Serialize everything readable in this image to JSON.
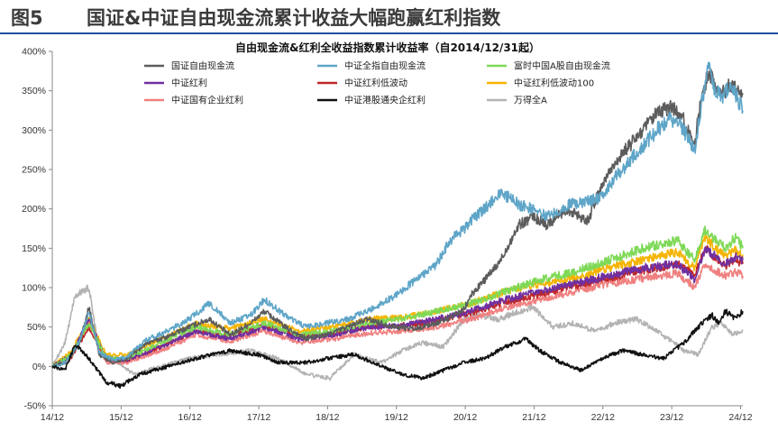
{
  "figure": {
    "number": "图5",
    "title": "国证&中证自由现金流累计收益大幅跑赢红利指数"
  },
  "chart_data": {
    "type": "line",
    "title": "自由现金流&红利全收益指数累计收益率（自2014/12/31起）",
    "xlabel": "",
    "ylabel": "",
    "y_ticks": [
      "-50%",
      "0%",
      "50%",
      "100%",
      "150%",
      "200%",
      "250%",
      "300%",
      "350%",
      "400%"
    ],
    "ylim": [
      -50,
      400
    ],
    "x_ticks": [
      "14/12",
      "15/12",
      "16/12",
      "17/12",
      "18/12",
      "19/12",
      "20/12",
      "21/12",
      "22/12",
      "23/12",
      "24/12"
    ],
    "x_tick_years": [
      2014.917,
      2015.917,
      2016.917,
      2017.917,
      2018.917,
      2019.917,
      2020.917,
      2021.917,
      2022.917,
      2023.917,
      2024.917
    ],
    "xlim": [
      2014.917,
      2024.95
    ],
    "grid": false,
    "legend_position": "top, inside, three columns",
    "x_unit": "year (decimal)",
    "y_unit": "%",
    "series": [
      {
        "name": "国证自由现金流",
        "color": "#5c5c5c",
        "x": [
          2014.92,
          2015.1,
          2015.3,
          2015.45,
          2015.6,
          2015.8,
          2016.0,
          2016.3,
          2016.6,
          2016.9,
          2017.2,
          2017.5,
          2017.8,
          2018.0,
          2018.3,
          2018.6,
          2018.9,
          2019.2,
          2019.5,
          2019.9,
          2020.2,
          2020.5,
          2020.7,
          2020.9,
          2021.0,
          2021.2,
          2021.4,
          2021.55,
          2021.7,
          2021.9,
          2022.1,
          2022.4,
          2022.7,
          2022.9,
          2023.1,
          2023.3,
          2023.5,
          2023.7,
          2023.9,
          2024.05,
          2024.15,
          2024.25,
          2024.35,
          2024.45,
          2024.55,
          2024.65,
          2024.75,
          2024.85,
          2024.95
        ],
        "y": [
          0,
          5,
          25,
          75,
          15,
          5,
          10,
          30,
          38,
          50,
          60,
          40,
          55,
          70,
          50,
          35,
          40,
          50,
          60,
          50,
          48,
          55,
          62,
          72,
          90,
          110,
          130,
          155,
          180,
          190,
          180,
          200,
          185,
          230,
          260,
          280,
          300,
          320,
          330,
          320,
          300,
          285,
          340,
          375,
          355,
          345,
          360,
          355,
          345
        ]
      },
      {
        "name": "中证全指自由现金流",
        "color": "#5ea5c8",
        "x": [
          2014.92,
          2015.1,
          2015.3,
          2015.45,
          2015.6,
          2015.8,
          2016.0,
          2016.3,
          2016.6,
          2016.9,
          2017.2,
          2017.5,
          2017.8,
          2018.0,
          2018.3,
          2018.6,
          2018.9,
          2019.2,
          2019.5,
          2019.9,
          2020.2,
          2020.5,
          2020.7,
          2020.9,
          2021.0,
          2021.2,
          2021.4,
          2021.55,
          2021.7,
          2021.9,
          2022.1,
          2022.4,
          2022.7,
          2022.9,
          2023.1,
          2023.3,
          2023.5,
          2023.7,
          2023.9,
          2024.05,
          2024.15,
          2024.25,
          2024.35,
          2024.45,
          2024.55,
          2024.65,
          2024.75,
          2024.85,
          2024.95
        ],
        "y": [
          0,
          5,
          28,
          70,
          18,
          8,
          12,
          35,
          45,
          60,
          80,
          55,
          65,
          85,
          65,
          50,
          55,
          60,
          70,
          90,
          110,
          130,
          160,
          175,
          185,
          200,
          220,
          215,
          205,
          200,
          190,
          205,
          210,
          215,
          240,
          260,
          280,
          300,
          315,
          305,
          290,
          275,
          335,
          380,
          350,
          340,
          355,
          345,
          325
        ]
      },
      {
        "name": "富时中国A股自由现金流",
        "color": "#7ed957",
        "x": [
          2014.92,
          2015.2,
          2015.45,
          2015.7,
          2016.0,
          2016.5,
          2017.0,
          2017.5,
          2018.0,
          2018.5,
          2019.0,
          2019.5,
          2020.0,
          2020.5,
          2021.0,
          2021.5,
          2022.0,
          2022.5,
          2023.0,
          2023.5,
          2024.0,
          2024.25,
          2024.4,
          2024.55,
          2024.7,
          2024.85,
          2024.95
        ],
        "y": [
          0,
          15,
          55,
          10,
          10,
          30,
          50,
          40,
          55,
          40,
          45,
          55,
          60,
          70,
          80,
          95,
          110,
          120,
          135,
          150,
          160,
          135,
          175,
          160,
          150,
          165,
          150
        ]
      },
      {
        "name": "中证红利",
        "color": "#7030a0",
        "x": [
          2014.92,
          2015.2,
          2015.45,
          2015.7,
          2016.0,
          2016.5,
          2017.0,
          2017.5,
          2018.0,
          2018.5,
          2019.0,
          2019.5,
          2020.0,
          2020.5,
          2021.0,
          2021.5,
          2022.0,
          2022.5,
          2023.0,
          2023.5,
          2024.0,
          2024.25,
          2024.4,
          2024.55,
          2024.7,
          2024.85,
          2024.95
        ],
        "y": [
          0,
          15,
          60,
          10,
          8,
          25,
          45,
          35,
          50,
          35,
          40,
          50,
          52,
          60,
          70,
          85,
          95,
          105,
          115,
          125,
          130,
          110,
          150,
          140,
          130,
          140,
          135
        ]
      },
      {
        "name": "中证红利低波动",
        "color": "#c0282a",
        "x": [
          2014.92,
          2015.2,
          2015.45,
          2015.7,
          2016.0,
          2016.5,
          2017.0,
          2017.5,
          2018.0,
          2018.5,
          2019.0,
          2019.5,
          2020.0,
          2020.5,
          2021.0,
          2021.5,
          2022.0,
          2022.5,
          2023.0,
          2023.5,
          2024.0,
          2024.25,
          2024.4,
          2024.55,
          2024.7,
          2024.85,
          2024.95
        ],
        "y": [
          0,
          12,
          50,
          8,
          8,
          25,
          45,
          38,
          52,
          38,
          42,
          50,
          52,
          58,
          68,
          82,
          92,
          102,
          112,
          122,
          130,
          115,
          150,
          138,
          128,
          135,
          130
        ]
      },
      {
        "name": "中证红利低波动100",
        "color": "#f4b400",
        "x": [
          2014.92,
          2015.2,
          2015.45,
          2015.7,
          2016.0,
          2016.5,
          2017.0,
          2017.5,
          2018.0,
          2018.5,
          2019.0,
          2019.5,
          2020.0,
          2020.5,
          2021.0,
          2021.5,
          2022.0,
          2022.5,
          2023.0,
          2023.5,
          2024.0,
          2024.25,
          2024.4,
          2024.55,
          2024.7,
          2024.85,
          2024.95
        ],
        "y": [
          0,
          20,
          60,
          15,
          15,
          35,
          55,
          48,
          60,
          45,
          50,
          60,
          62,
          70,
          80,
          95,
          105,
          112,
          125,
          135,
          145,
          125,
          165,
          150,
          140,
          148,
          142
        ]
      },
      {
        "name": "中证国有企业红利",
        "color": "#f08080",
        "x": [
          2014.92,
          2015.2,
          2015.45,
          2015.7,
          2016.0,
          2016.5,
          2017.0,
          2017.5,
          2018.0,
          2018.5,
          2019.0,
          2019.5,
          2020.0,
          2020.5,
          2021.0,
          2021.5,
          2022.0,
          2022.5,
          2023.0,
          2023.5,
          2024.0,
          2024.25,
          2024.4,
          2024.55,
          2024.7,
          2024.85,
          2024.95
        ],
        "y": [
          0,
          12,
          55,
          5,
          5,
          20,
          40,
          32,
          45,
          30,
          35,
          42,
          45,
          50,
          60,
          75,
          85,
          95,
          105,
          112,
          118,
          100,
          130,
          122,
          115,
          120,
          115
        ]
      },
      {
        "name": "中证港股通央企红利",
        "color": "#111111",
        "x": [
          2014.92,
          2015.1,
          2015.25,
          2015.45,
          2015.7,
          2015.9,
          2016.2,
          2016.6,
          2017.0,
          2017.5,
          2017.9,
          2018.2,
          2018.6,
          2018.9,
          2019.3,
          2019.7,
          2020.0,
          2020.3,
          2020.6,
          2020.9,
          2021.2,
          2021.5,
          2021.8,
          2022.0,
          2022.3,
          2022.6,
          2022.9,
          2023.2,
          2023.5,
          2023.8,
          2023.95,
          2024.1,
          2024.3,
          2024.5,
          2024.6,
          2024.7,
          2024.85,
          2024.95
        ],
        "y": [
          0,
          -5,
          28,
          10,
          -20,
          -25,
          -10,
          0,
          10,
          20,
          15,
          5,
          5,
          10,
          15,
          0,
          -10,
          -15,
          -5,
          5,
          10,
          25,
          35,
          20,
          5,
          -5,
          10,
          20,
          15,
          10,
          20,
          30,
          50,
          65,
          55,
          70,
          60,
          70
        ]
      },
      {
        "name": "万得全A",
        "color": "#b3b3b3",
        "x": [
          2014.92,
          2015.1,
          2015.25,
          2015.45,
          2015.6,
          2015.8,
          2016.1,
          2016.5,
          2016.9,
          2017.3,
          2017.8,
          2018.2,
          2018.6,
          2018.95,
          2019.3,
          2019.7,
          2020.0,
          2020.3,
          2020.6,
          2020.9,
          2021.1,
          2021.4,
          2021.7,
          2021.9,
          2022.2,
          2022.5,
          2022.8,
          2023.1,
          2023.4,
          2023.7,
          2023.95,
          2024.1,
          2024.3,
          2024.5,
          2024.65,
          2024.8,
          2024.95
        ],
        "y": [
          0,
          30,
          90,
          100,
          15,
          10,
          -10,
          0,
          10,
          15,
          20,
          10,
          -10,
          -15,
          15,
          5,
          20,
          30,
          25,
          60,
          65,
          60,
          70,
          75,
          50,
          55,
          45,
          55,
          60,
          45,
          30,
          20,
          15,
          50,
          55,
          40,
          45
        ]
      }
    ]
  }
}
